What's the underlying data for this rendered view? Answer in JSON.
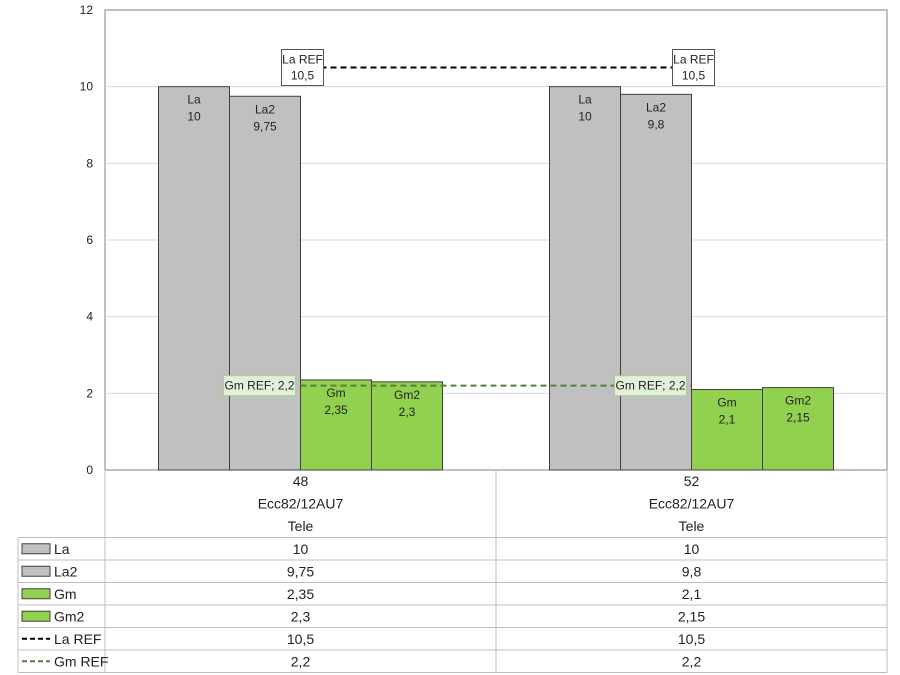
{
  "chart_data": {
    "type": "bar",
    "ylim": [
      0,
      12
    ],
    "y_ticks": [
      "0",
      "2",
      "4",
      "6",
      "8",
      "10",
      "12"
    ],
    "grid": "horizontal",
    "categories": [
      {
        "labels": [
          "48",
          "Ecc82/12AU7",
          "Tele"
        ]
      },
      {
        "labels": [
          "52",
          "Ecc82/12AU7",
          "Tele"
        ]
      }
    ],
    "series": [
      {
        "name": "La",
        "kind": "bar",
        "color": "#c0c0c0",
        "values": [
          10,
          10.0
        ],
        "display": [
          "10",
          "10"
        ]
      },
      {
        "name": "La2",
        "kind": "bar",
        "color": "#c0c0c0",
        "values": [
          9.75,
          9.8
        ],
        "display": [
          "9,75",
          "9,8"
        ]
      },
      {
        "name": "Gm",
        "kind": "bar",
        "color": "#92d050",
        "values": [
          2.35,
          2.1
        ],
        "display": [
          "2,35",
          "2,1"
        ]
      },
      {
        "name": "Gm2",
        "kind": "bar",
        "color": "#92d050",
        "values": [
          2.3,
          2.15
        ],
        "display": [
          "2,3",
          "2,15"
        ]
      },
      {
        "name": "La REF",
        "kind": "line",
        "color": "#000000",
        "values": [
          10.5,
          10.5
        ],
        "display": [
          "10,5",
          "10,5"
        ]
      },
      {
        "name": "Gm REF",
        "kind": "line",
        "color": "#538135",
        "values": [
          2.2,
          2.2
        ],
        "display": [
          "2,2",
          "2,2"
        ]
      }
    ],
    "ref_labels": [
      {
        "series": "La REF",
        "text": [
          "La REF",
          "10,5"
        ],
        "box_fill": "#ffffff",
        "box_stroke": "#555555"
      },
      {
        "series": "Gm REF",
        "text": [
          "Gm REF; 2,2"
        ],
        "box_fill": "#e2efda",
        "box_stroke": "#a9d18e"
      }
    ]
  }
}
